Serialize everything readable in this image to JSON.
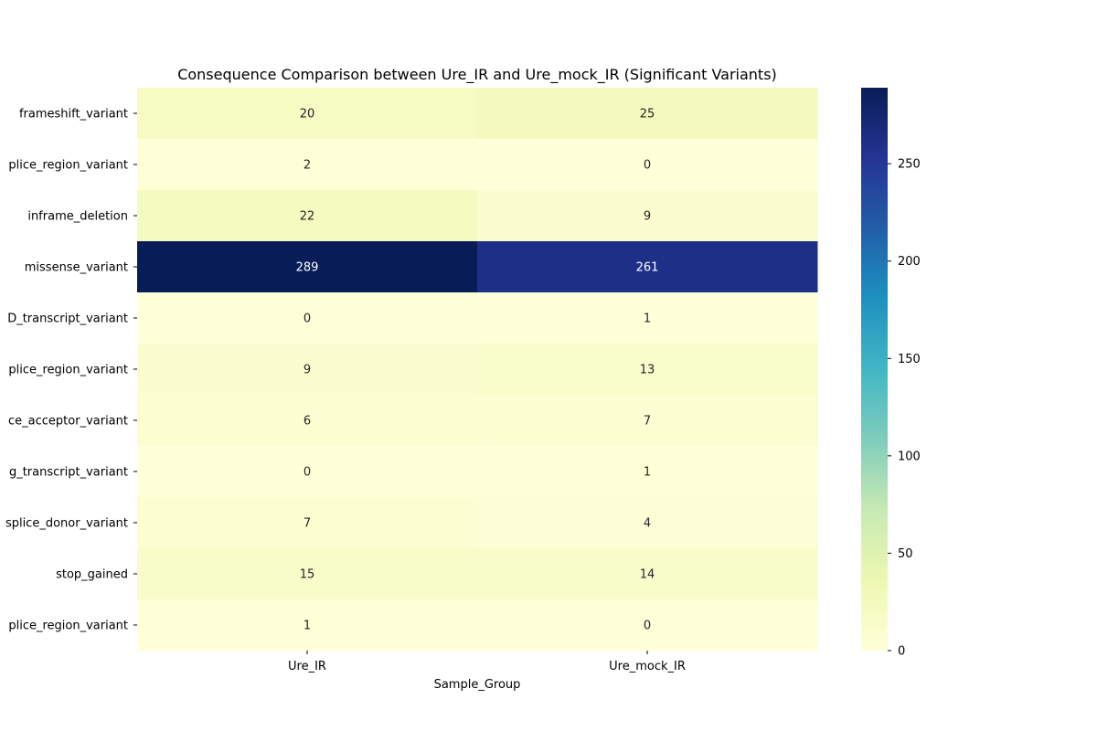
{
  "chart_data": {
    "type": "heatmap",
    "title": "Consequence Comparison between Ure_IR and Ure_mock_IR (Significant Variants)",
    "xlabel": "Sample_Group",
    "ylabel": "",
    "columns": [
      "Ure_IR",
      "Ure_mock_IR"
    ],
    "rows": [
      "frameshift_variant",
      "plice_region_variant",
      "inframe_deletion",
      "missense_variant",
      "D_transcript_variant",
      "plice_region_variant",
      "ce_acceptor_variant",
      "g_transcript_variant",
      "splice_donor_variant",
      "stop_gained",
      "plice_region_variant"
    ],
    "values": [
      [
        20,
        25
      ],
      [
        2,
        0
      ],
      [
        22,
        9
      ],
      [
        289,
        261
      ],
      [
        0,
        1
      ],
      [
        9,
        13
      ],
      [
        6,
        7
      ],
      [
        0,
        1
      ],
      [
        7,
        4
      ],
      [
        15,
        14
      ],
      [
        1,
        0
      ]
    ],
    "colormap": "YlGnBu",
    "colorbar": {
      "range": [
        0,
        289
      ],
      "ticks": [
        0,
        50,
        100,
        150,
        200,
        250
      ]
    },
    "annotation_colors": {
      "light": "#ffffff",
      "dark": "#262626"
    }
  }
}
